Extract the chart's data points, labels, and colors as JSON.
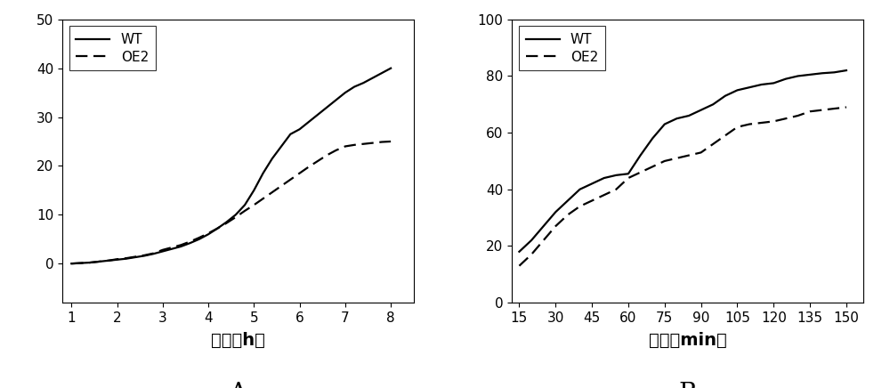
{
  "chart_A": {
    "x_wt": [
      1,
      1.2,
      1.4,
      1.6,
      1.8,
      2.0,
      2.2,
      2.4,
      2.6,
      2.8,
      3.0,
      3.2,
      3.4,
      3.6,
      3.8,
      4.0,
      4.2,
      4.4,
      4.6,
      4.8,
      5.0,
      5.2,
      5.4,
      5.6,
      5.8,
      6.0,
      6.2,
      6.4,
      6.6,
      6.8,
      7.0,
      7.2,
      7.4,
      7.6,
      7.8,
      8.0
    ],
    "y_wt": [
      0,
      0.1,
      0.2,
      0.4,
      0.6,
      0.8,
      1.0,
      1.3,
      1.6,
      2.0,
      2.5,
      3.0,
      3.5,
      4.2,
      5.0,
      6.0,
      7.2,
      8.5,
      10.0,
      12.0,
      15.0,
      18.5,
      21.5,
      24.0,
      26.5,
      27.5,
      29.0,
      30.5,
      32.0,
      33.5,
      35.0,
      36.2,
      37.0,
      38.0,
      39.0,
      40.0
    ],
    "x_oe2": [
      1,
      1.2,
      1.4,
      1.6,
      1.8,
      2.0,
      2.2,
      2.4,
      2.6,
      2.8,
      3.0,
      3.2,
      3.4,
      3.6,
      3.8,
      4.0,
      4.2,
      4.4,
      4.6,
      4.8,
      5.0,
      5.2,
      5.4,
      5.6,
      5.8,
      6.0,
      6.2,
      6.4,
      6.6,
      6.8,
      7.0,
      7.2,
      7.4,
      7.6,
      7.8,
      8.0
    ],
    "y_oe2": [
      0,
      0.1,
      0.2,
      0.4,
      0.6,
      0.9,
      1.1,
      1.4,
      1.7,
      2.1,
      2.8,
      3.3,
      3.8,
      4.5,
      5.3,
      6.2,
      7.2,
      8.3,
      9.5,
      10.8,
      12.0,
      13.3,
      14.6,
      15.9,
      17.2,
      18.5,
      19.8,
      21.0,
      22.2,
      23.2,
      24.0,
      24.3,
      24.5,
      24.7,
      24.9,
      25.0
    ],
    "xlabel": "时间（h）",
    "xlim": [
      0.8,
      8.5
    ],
    "xticks": [
      1,
      2,
      3,
      4,
      5,
      6,
      7,
      8
    ],
    "ylim": [
      -8,
      50
    ],
    "yticks": [
      0,
      10,
      20,
      30,
      40,
      50
    ],
    "label": "A"
  },
  "chart_B": {
    "x_wt": [
      15,
      20,
      25,
      30,
      35,
      40,
      45,
      50,
      55,
      60,
      65,
      70,
      75,
      80,
      85,
      90,
      95,
      100,
      105,
      110,
      115,
      120,
      125,
      130,
      135,
      140,
      145,
      150
    ],
    "y_wt": [
      18,
      22,
      27,
      32,
      36,
      40,
      42,
      44,
      45,
      45.5,
      52,
      58,
      63,
      65,
      66,
      68,
      70,
      73,
      75,
      76,
      77,
      77.5,
      79,
      80,
      80.5,
      81,
      81.3,
      82
    ],
    "x_oe2": [
      15,
      20,
      25,
      30,
      35,
      40,
      45,
      50,
      55,
      60,
      65,
      70,
      75,
      80,
      85,
      90,
      95,
      100,
      105,
      110,
      115,
      120,
      125,
      130,
      135,
      140,
      145,
      150
    ],
    "y_oe2": [
      13,
      17,
      22,
      27,
      31,
      34,
      36,
      38,
      40,
      44,
      46,
      48,
      50,
      51,
      52,
      53,
      56,
      59,
      62,
      63,
      63.5,
      64,
      65,
      66,
      67.5,
      68,
      68.5,
      69
    ],
    "xlabel": "时间（min）",
    "xlim": [
      12,
      157
    ],
    "xticks": [
      15,
      30,
      45,
      60,
      75,
      90,
      105,
      120,
      135,
      150
    ],
    "ylim": [
      0,
      100
    ],
    "yticks": [
      0,
      20,
      40,
      60,
      80,
      100
    ],
    "label": "B"
  },
  "line_color_wt": "#000000",
  "line_color_oe2": "#000000",
  "line_width": 1.6,
  "legend_wt": "WT",
  "legend_oe2": "OE2",
  "font_size_xlabel": 14,
  "font_size_axis": 11,
  "font_size_caption": 20,
  "background_color": "#ffffff"
}
